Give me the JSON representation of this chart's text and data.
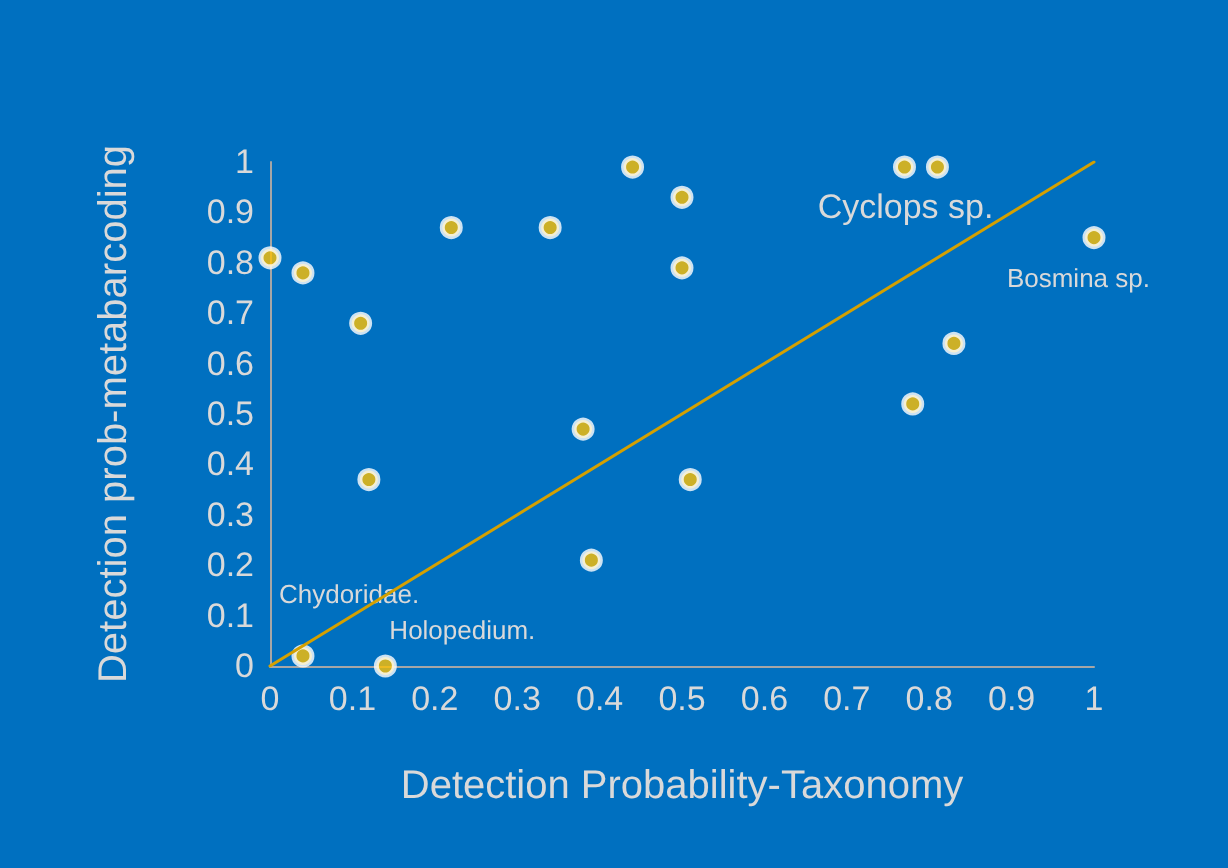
{
  "chart_data": {
    "type": "scatter",
    "xlabel": "Detection Probability-Taxonomy",
    "ylabel": "Detection prob-metabarcoding",
    "xlim": [
      0,
      1
    ],
    "ylim": [
      0,
      1
    ],
    "xticks": [
      0,
      0.1,
      0.2,
      0.3,
      0.4,
      0.5,
      0.6,
      0.7,
      0.8,
      0.9,
      1
    ],
    "yticks": [
      0,
      0.1,
      0.2,
      0.3,
      0.4,
      0.5,
      0.6,
      0.7,
      0.8,
      0.9,
      1
    ],
    "grid": false,
    "marker": "circle",
    "series": [
      {
        "color": "#ffc000",
        "x": [
          0,
          0.04,
          0.11,
          0.12,
          0.22,
          0.34,
          0.44,
          0.38,
          0.39,
          0.04,
          0.14,
          0.5,
          0.5,
          0.51,
          0.77,
          0.81,
          1,
          0.83,
          0.78
        ],
        "values": [
          0.81,
          0.78,
          0.68,
          0.37,
          0.87,
          0.87,
          0.99,
          0.47,
          0.21,
          0.02,
          0,
          0.93,
          0.79,
          0.37,
          0.99,
          0.99,
          0.85,
          0.64,
          0.52
        ]
      },
      {
        "type": "line",
        "color": "#d4a000",
        "x": [
          0,
          1
        ],
        "values": [
          0,
          1
        ],
        "marker": "none",
        "line_style": "solid"
      }
    ],
    "annotations": [
      {
        "text": "Cyclops sp.",
        "x": 0.81,
        "y": 0.99
      },
      {
        "text": "Bosmina sp.",
        "x": 1,
        "y": 0.85
      },
      {
        "text": "Chydoridae.",
        "x": 0.04,
        "y": 0.02
      },
      {
        "text": "Holopedium.",
        "x": 0.14,
        "y": 0
      }
    ]
  }
}
